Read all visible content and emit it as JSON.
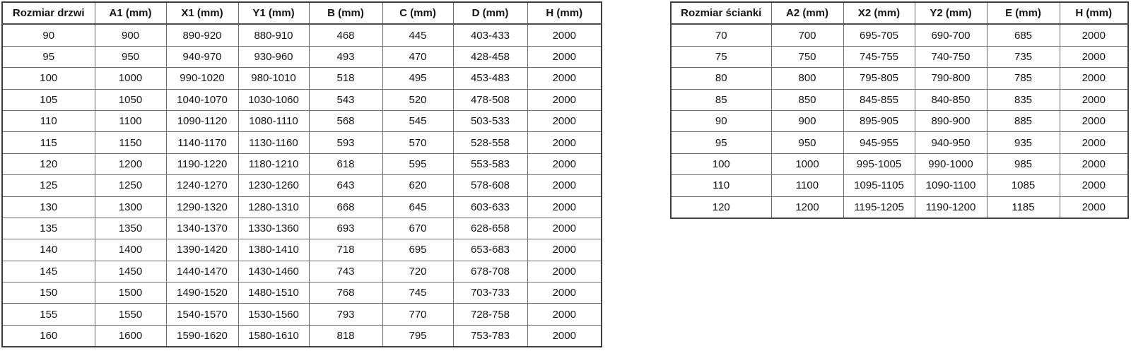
{
  "colors": {
    "background": "#ffffff",
    "border_inner": "#6a6a6a",
    "border_outer": "#3f3f3f",
    "text": "#141414"
  },
  "tables": [
    {
      "name": "door-size-table",
      "headers": [
        "Rozmiar drzwi",
        "A1 (mm)",
        "X1 (mm)",
        "Y1 (mm)",
        "B (mm)",
        "C (mm)",
        "D (mm)",
        "H (mm)"
      ],
      "rows": [
        [
          "90",
          "900",
          "890-920",
          "880-910",
          "468",
          "445",
          "403-433",
          "2000"
        ],
        [
          "95",
          "950",
          "940-970",
          "930-960",
          "493",
          "470",
          "428-458",
          "2000"
        ],
        [
          "100",
          "1000",
          "990-1020",
          "980-1010",
          "518",
          "495",
          "453-483",
          "2000"
        ],
        [
          "105",
          "1050",
          "1040-1070",
          "1030-1060",
          "543",
          "520",
          "478-508",
          "2000"
        ],
        [
          "110",
          "1100",
          "1090-1120",
          "1080-1110",
          "568",
          "545",
          "503-533",
          "2000"
        ],
        [
          "115",
          "1150",
          "1140-1170",
          "1130-1160",
          "593",
          "570",
          "528-558",
          "2000"
        ],
        [
          "120",
          "1200",
          "1190-1220",
          "1180-1210",
          "618",
          "595",
          "553-583",
          "2000"
        ],
        [
          "125",
          "1250",
          "1240-1270",
          "1230-1260",
          "643",
          "620",
          "578-608",
          "2000"
        ],
        [
          "130",
          "1300",
          "1290-1320",
          "1280-1310",
          "668",
          "645",
          "603-633",
          "2000"
        ],
        [
          "135",
          "1350",
          "1340-1370",
          "1330-1360",
          "693",
          "670",
          "628-658",
          "2000"
        ],
        [
          "140",
          "1400",
          "1390-1420",
          "1380-1410",
          "718",
          "695",
          "653-683",
          "2000"
        ],
        [
          "145",
          "1450",
          "1440-1470",
          "1430-1460",
          "743",
          "720",
          "678-708",
          "2000"
        ],
        [
          "150",
          "1500",
          "1490-1520",
          "1480-1510",
          "768",
          "745",
          "703-733",
          "2000"
        ],
        [
          "155",
          "1550",
          "1540-1570",
          "1530-1560",
          "793",
          "770",
          "728-758",
          "2000"
        ],
        [
          "160",
          "1600",
          "1590-1620",
          "1580-1610",
          "818",
          "795",
          "753-783",
          "2000"
        ]
      ]
    },
    {
      "name": "wall-size-table",
      "headers": [
        "Rozmiar ścianki",
        "A2 (mm)",
        "X2 (mm)",
        "Y2 (mm)",
        "E (mm)",
        "H (mm)"
      ],
      "rows": [
        [
          "70",
          "700",
          "695-705",
          "690-700",
          "685",
          "2000"
        ],
        [
          "75",
          "750",
          "745-755",
          "740-750",
          "735",
          "2000"
        ],
        [
          "80",
          "800",
          "795-805",
          "790-800",
          "785",
          "2000"
        ],
        [
          "85",
          "850",
          "845-855",
          "840-850",
          "835",
          "2000"
        ],
        [
          "90",
          "900",
          "895-905",
          "890-900",
          "885",
          "2000"
        ],
        [
          "95",
          "950",
          "945-955",
          "940-950",
          "935",
          "2000"
        ],
        [
          "100",
          "1000",
          "995-1005",
          "990-1000",
          "985",
          "2000"
        ],
        [
          "110",
          "1100",
          "1095-1105",
          "1090-1100",
          "1085",
          "2000"
        ],
        [
          "120",
          "1200",
          "1195-1205",
          "1190-1200",
          "1185",
          "2000"
        ]
      ]
    }
  ]
}
